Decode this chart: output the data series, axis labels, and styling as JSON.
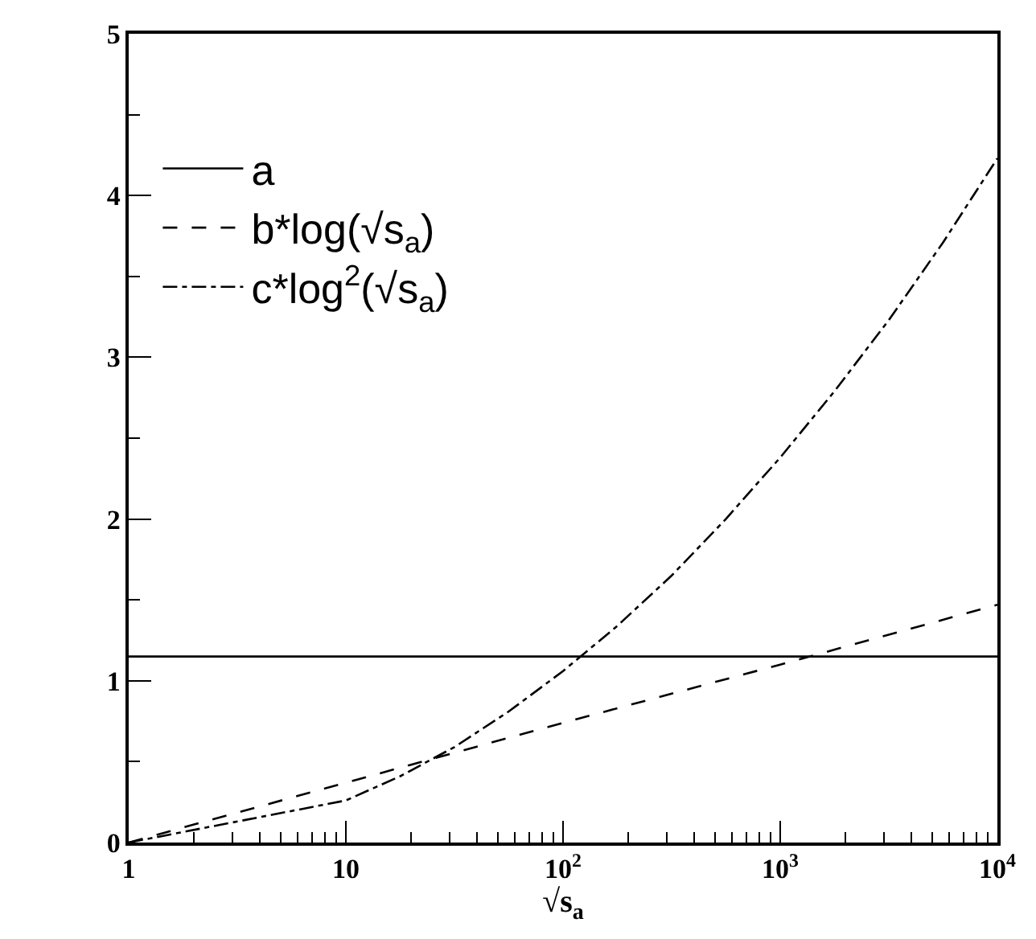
{
  "chart_data": {
    "type": "line",
    "xlabel": "√s$_{a}$",
    "log": "x",
    "xlim": [
      1,
      10000
    ],
    "xticks": [
      1,
      10,
      {
        "value": 100,
        "label": "10$^{2}$"
      },
      {
        "value": 1000,
        "label": "10$^{3}$"
      },
      {
        "value": 10000,
        "label": "10$^{4}$"
      }
    ],
    "ylim": [
      0,
      5
    ],
    "yticks": [
      0,
      1,
      2,
      3,
      4,
      5
    ],
    "grid": false,
    "legend": "top left",
    "marker": "none",
    "series": [
      {
        "name": "a",
        "color": "#000000",
        "line_style": "solid",
        "x": [
          1,
          10000
        ],
        "values": [
          1.15,
          1.15
        ]
      },
      {
        "name": "b*log(√s$_{a}$)",
        "color": "#000000",
        "line_style": "dashed",
        "x": [
          1,
          10,
          100,
          1000,
          10000
        ],
        "values": [
          0,
          0.37,
          0.74,
          1.1,
          1.47
        ]
      },
      {
        "name": "c*log$^{2}$(√s$_{a}$)",
        "color": "#000000",
        "line_style": "dashdot",
        "x": [
          1,
          10,
          17.8,
          31.6,
          56.2,
          100,
          178,
          316,
          562,
          1000,
          1778,
          3162,
          5623,
          10000
        ],
        "values": [
          0,
          0.26,
          0.41,
          0.59,
          0.81,
          1.06,
          1.34,
          1.65,
          2.0,
          2.38,
          2.79,
          3.23,
          3.71,
          4.23
        ]
      }
    ]
  }
}
